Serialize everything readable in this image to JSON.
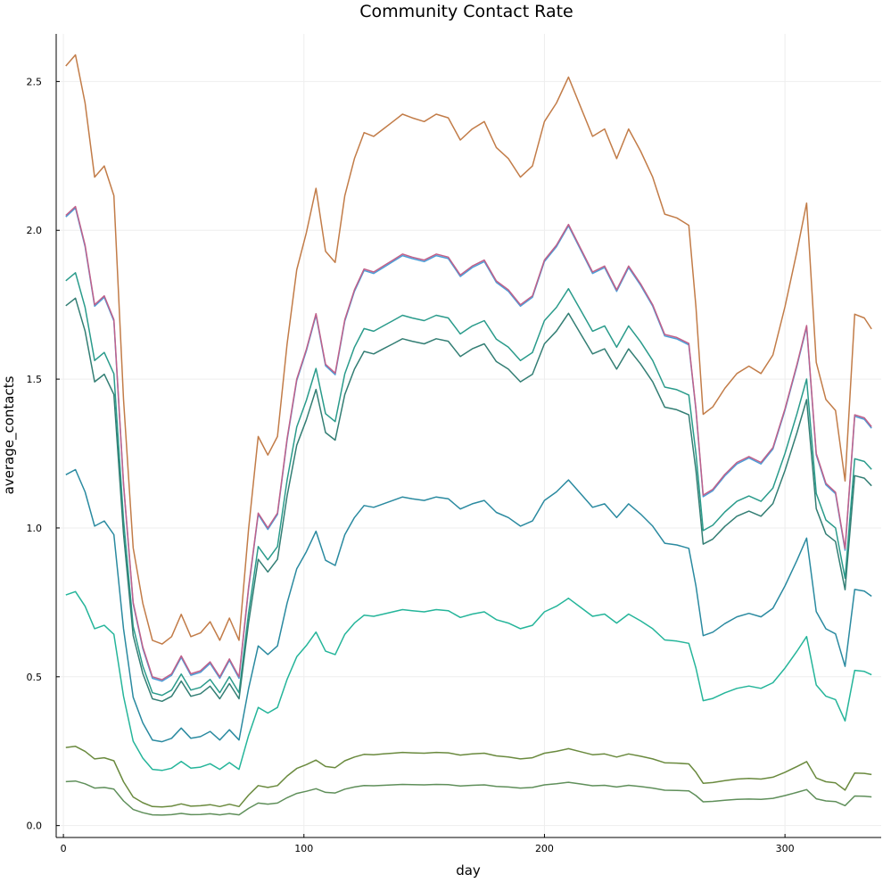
{
  "chart_data": {
    "type": "line",
    "title": "Community Contact Rate",
    "xlabel": "day",
    "ylabel": "average_contacts",
    "xlim": [
      -3,
      340
    ],
    "ylim": [
      -0.04,
      2.66
    ],
    "xticks": [
      0,
      100,
      200,
      300
    ],
    "yticks": [
      0.0,
      0.5,
      1.0,
      1.5,
      2.0,
      2.5
    ],
    "ytick_labels": [
      "0.0",
      "0.5",
      "1.0",
      "1.5",
      "2.0",
      "2.5"
    ],
    "grid": true,
    "legend": "none",
    "shape": {
      "x": [
        1,
        5,
        9,
        13,
        17,
        21,
        25,
        29,
        33,
        37,
        41,
        45,
        49,
        53,
        57,
        61,
        65,
        69,
        73,
        77,
        81,
        85,
        89,
        93,
        97,
        101,
        105,
        109,
        113,
        117,
        121,
        125,
        129,
        133,
        137,
        141,
        145,
        150,
        155,
        160,
        165,
        170,
        175,
        180,
        185,
        190,
        195,
        200,
        205,
        210,
        215,
        220,
        225,
        230,
        235,
        240,
        245,
        250,
        255,
        260,
        263,
        266,
        270,
        275,
        280,
        285,
        290,
        295,
        300,
        305,
        309,
        313,
        317,
        321,
        325,
        329,
        333,
        336
      ],
      "y": [
        2.05,
        2.08,
        1.95,
        1.75,
        1.78,
        1.7,
        1.15,
        0.75,
        0.6,
        0.5,
        0.49,
        0.51,
        0.57,
        0.51,
        0.52,
        0.55,
        0.5,
        0.56,
        0.5,
        0.8,
        1.05,
        1.0,
        1.05,
        1.3,
        1.5,
        1.6,
        1.72,
        1.55,
        1.52,
        1.7,
        1.8,
        1.87,
        1.86,
        1.88,
        1.9,
        1.92,
        1.91,
        1.9,
        1.92,
        1.91,
        1.85,
        1.88,
        1.9,
        1.83,
        1.8,
        1.75,
        1.78,
        1.9,
        1.95,
        2.02,
        1.94,
        1.86,
        1.88,
        1.8,
        1.88,
        1.82,
        1.75,
        1.65,
        1.64,
        1.62,
        1.4,
        1.11,
        1.13,
        1.18,
        1.22,
        1.24,
        1.22,
        1.27,
        1.4,
        1.55,
        1.68,
        1.25,
        1.15,
        1.12,
        0.93,
        1.38,
        1.37,
        1.34
      ]
    },
    "series": [
      {
        "color": "#c27c48",
        "scale": 1.245,
        "offset": 0.0
      },
      {
        "color": "#4a9ed8",
        "scale": 1.0,
        "offset": -0.005
      },
      {
        "color": "#c0608a",
        "scale": 1.0,
        "offset": 0.0
      },
      {
        "color": "#2a9b8b",
        "scale": 0.893,
        "offset": 0.0
      },
      {
        "color": "#337e74",
        "scale": 0.852,
        "offset": 0.0
      },
      {
        "color": "#2a8aa0",
        "scale": 0.575,
        "offset": 0.0
      },
      {
        "color": "#25b59a",
        "scale": 0.378,
        "offset": 0.0
      },
      {
        "color": "#6a8a3e",
        "scale": 0.128,
        "offset": 0.0
      },
      {
        "color": "#5f8f5a",
        "scale": 0.072,
        "offset": 0.0
      }
    ]
  }
}
